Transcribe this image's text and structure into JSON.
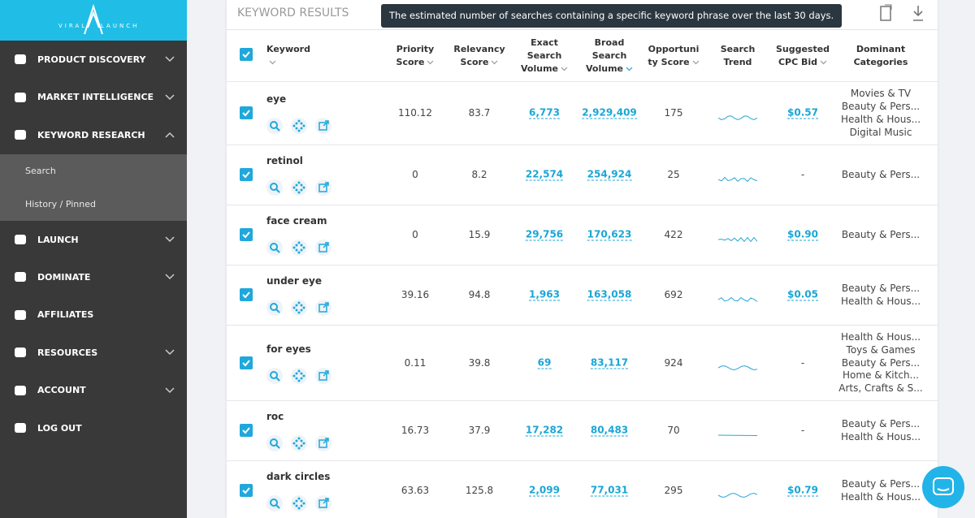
{
  "sidebar": {
    "logo_left": "VIRAL",
    "logo_right": "LAUNCH",
    "nav": [
      "PRODUCT DISCOVERY",
      "MARKET INTELLIGENCE",
      "KEYWORD RESEARCH"
    ],
    "submenu": [
      "Search",
      "History / Pinned"
    ],
    "nav_bottom": [
      "LAUNCH",
      "DOMINATE",
      "AFFILIATES",
      "RESOURCES",
      "ACCOUNT",
      "LOG OUT"
    ]
  },
  "header": {
    "title": "KEYWORD RESULTS",
    "tooltip": "The estimated number of searches containing a specific keyword phrase over the last 30 days."
  },
  "table": {
    "columns": [
      "Keyword",
      "Priority Score",
      "Relevancy Score",
      "Exact Search Volume",
      "Broad Search Volume",
      "Opportunity Score",
      "Search Trend",
      "Suggested CPC Bid",
      "Dominant Categories"
    ],
    "rows": [
      {
        "keyword": "eye",
        "priority": "110.12",
        "relevancy": "83.7",
        "exact": "6,773",
        "broad": "2,929,409",
        "opportunity": "175",
        "cpc": "$0.57",
        "categories": [
          "Movies & TV",
          "Beauty & Pers...",
          "Health & Hous...",
          "Digital Music"
        ]
      },
      {
        "keyword": "retinol",
        "priority": "0",
        "relevancy": "8.2",
        "exact": "22,574",
        "broad": "254,924",
        "opportunity": "25",
        "cpc": "-",
        "categories": [
          "Beauty & Pers..."
        ]
      },
      {
        "keyword": "face cream",
        "priority": "0",
        "relevancy": "15.9",
        "exact": "29,756",
        "broad": "170,623",
        "opportunity": "422",
        "cpc": "$0.90",
        "categories": [
          "Beauty & Pers..."
        ]
      },
      {
        "keyword": "under eye",
        "priority": "39.16",
        "relevancy": "94.8",
        "exact": "1,963",
        "broad": "163,058",
        "opportunity": "692",
        "cpc": "$0.05",
        "categories": [
          "Beauty & Pers...",
          "Health & Hous..."
        ]
      },
      {
        "keyword": "for eyes",
        "priority": "0.11",
        "relevancy": "39.8",
        "exact": "69",
        "broad": "83,117",
        "opportunity": "924",
        "cpc": "-",
        "categories": [
          "Health & Hous...",
          "Toys & Games",
          "Beauty & Pers...",
          "Home & Kitch...",
          "Arts, Crafts & S..."
        ]
      },
      {
        "keyword": "roc",
        "priority": "16.73",
        "relevancy": "37.9",
        "exact": "17,282",
        "broad": "80,483",
        "opportunity": "70",
        "cpc": "-",
        "categories": [
          "Beauty & Pers...",
          "Health & Hous..."
        ]
      },
      {
        "keyword": "dark circles",
        "priority": "63.63",
        "relevancy": "125.8",
        "exact": "2,099",
        "broad": "77,031",
        "opportunity": "295",
        "cpc": "$0.79",
        "categories": [
          "Beauty & Pers...",
          "Health & Hous..."
        ]
      }
    ]
  }
}
